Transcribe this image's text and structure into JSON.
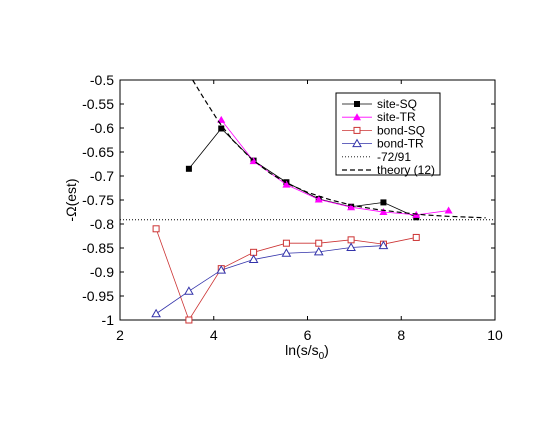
{
  "chart_data": {
    "type": "line",
    "xlabel": "ln(s/s",
    "xlabel_sub": "0",
    "xlabel_end": ")",
    "ylabel": "-Ω(est)",
    "xlim": [
      2,
      10
    ],
    "ylim": [
      -1,
      -0.5
    ],
    "xticks": [
      2,
      4,
      6,
      8,
      10
    ],
    "yticks": [
      -1,
      -0.95,
      -0.9,
      -0.85,
      -0.8,
      -0.75,
      -0.7,
      -0.65,
      -0.6,
      -0.55,
      -0.5
    ],
    "ytick_labels": [
      "-1",
      "-0.95",
      "-0.9",
      "-0.85",
      "-0.8",
      "-0.75",
      "-0.7",
      "-0.65",
      "-0.6",
      "-0.55",
      "-0.5"
    ],
    "xtick_labels": [
      "2",
      "4",
      "6",
      "8",
      "10"
    ],
    "grid": false,
    "legend_position": "top-right",
    "series": [
      {
        "name": "site-SQ",
        "color": "#000000",
        "marker": "filled-square",
        "x": [
          3.47,
          4.16,
          4.85,
          5.55,
          6.24,
          6.93,
          7.62,
          8.32
        ],
        "y": [
          -0.685,
          -0.601,
          -0.668,
          -0.713,
          -0.748,
          -0.764,
          -0.755,
          -0.786
        ]
      },
      {
        "name": "site-TR",
        "color": "#ff00ff",
        "marker": "filled-triangle",
        "x": [
          4.16,
          4.85,
          5.55,
          6.24,
          6.93,
          7.62,
          8.32,
          9.01
        ],
        "y": [
          -0.583,
          -0.669,
          -0.718,
          -0.749,
          -0.765,
          -0.775,
          -0.781,
          -0.772
        ]
      },
      {
        "name": "bond-SQ",
        "color": "#cc3333",
        "marker": "open-square",
        "x": [
          2.77,
          3.47,
          4.16,
          4.85,
          5.55,
          6.24,
          6.93,
          7.62,
          8.32
        ],
        "y": [
          -0.81,
          -1.005,
          -0.893,
          -0.859,
          -0.84,
          -0.84,
          -0.833,
          -0.842,
          -0.828
        ]
      },
      {
        "name": "bond-TR",
        "color": "#3333aa",
        "marker": "open-triangle",
        "x": [
          2.77,
          3.47,
          4.16,
          4.85,
          5.55,
          6.24,
          6.93,
          7.62
        ],
        "y": [
          -0.987,
          -0.94,
          -0.896,
          -0.874,
          -0.861,
          -0.858,
          -0.849,
          -0.845
        ]
      },
      {
        "name": "-72/91",
        "color": "#000000",
        "style": "dotted",
        "y_const": -0.7912
      },
      {
        "name": "theory (12)",
        "color": "#000000",
        "style": "dashed",
        "x": [
          3.55,
          3.8,
          4.1,
          4.4,
          4.8,
          5.2,
          5.6,
          6.0,
          6.5,
          7.0,
          7.5,
          8.0,
          8.5,
          9.0,
          9.5,
          9.8
        ],
        "y": [
          -0.5,
          -0.54,
          -0.586,
          -0.625,
          -0.664,
          -0.694,
          -0.717,
          -0.734,
          -0.75,
          -0.762,
          -0.77,
          -0.776,
          -0.781,
          -0.784,
          -0.786,
          -0.787
        ]
      }
    ]
  }
}
